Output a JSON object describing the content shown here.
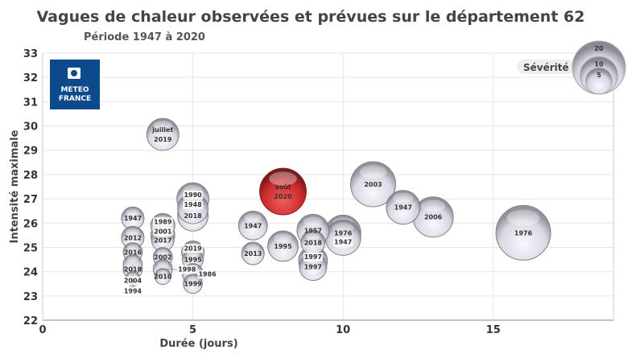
{
  "chart_data": {
    "type": "scatter",
    "title": "Vagues de chaleur observées et prévues sur le département 62",
    "subtitle": "Période 1947 à 2020",
    "xlabel": "Durée (jours)",
    "ylabel": "Intensité maximale",
    "xlim": [
      0,
      19
    ],
    "ylim": [
      22,
      33
    ],
    "xticks": [
      0,
      5,
      10,
      15
    ],
    "yticks": [
      22,
      23,
      24,
      25,
      26,
      27,
      28,
      29,
      30,
      31,
      32,
      33
    ],
    "grid": true,
    "legend": {
      "title": "Sévérité",
      "sizes": [
        20,
        10,
        5
      ],
      "placement": "top-right"
    },
    "logo": "METEO FRANCE",
    "colors": {
      "bubble": "#d8d8e4",
      "highlight": "#d42020",
      "logo": "#0c4a8c"
    },
    "points": [
      {
        "x": 3,
        "y": 26.2,
        "s": 3.6,
        "label": "1947"
      },
      {
        "x": 3,
        "y": 25.4,
        "s": 3.6,
        "label": "2012"
      },
      {
        "x": 3,
        "y": 24.8,
        "s": 2.6,
        "label": "2016"
      },
      {
        "x": 3,
        "y": 24.1,
        "s": 2.6,
        "label": "2018"
      },
      {
        "x": 3,
        "y": 24.3,
        "s": 2.6,
        "label": "2004"
      },
      {
        "x": 3,
        "y": 23.7,
        "s": 1.5,
        "label": "1994"
      },
      {
        "x": 4,
        "y": 29.65,
        "s": 7.3,
        "label": "2019",
        "label2": "juillet"
      },
      {
        "x": 4,
        "y": 25.3,
        "s": 3.6,
        "label": "2017"
      },
      {
        "x": 4,
        "y": 25.5,
        "s": 4.1,
        "label": "2001"
      },
      {
        "x": 4,
        "y": 25.9,
        "s": 4.1,
        "label": "1989"
      },
      {
        "x": 4,
        "y": 24.6,
        "s": 2.6,
        "label": "2002"
      },
      {
        "x": 4,
        "y": 23.8,
        "s": 1.8,
        "label": "2010"
      },
      {
        "x": 4,
        "y": 24.1,
        "s": 2.6,
        "label": "1998"
      },
      {
        "x": 5,
        "y": 26.3,
        "s": 6.6,
        "label": "2018"
      },
      {
        "x": 5,
        "y": 26.6,
        "s": 6.6,
        "label": "1948"
      },
      {
        "x": 5,
        "y": 27.0,
        "s": 7.3,
        "label": "1990"
      },
      {
        "x": 5,
        "y": 24.5,
        "s": 3.1,
        "label": "1995"
      },
      {
        "x": 5,
        "y": 24.8,
        "s": 3.6,
        "label": "2019"
      },
      {
        "x": 5,
        "y": 23.5,
        "s": 2.6,
        "label": "1999"
      },
      {
        "x": 5,
        "y": 23.9,
        "s": 3.1,
        "label": "1986"
      },
      {
        "x": 7,
        "y": 25.9,
        "s": 5.9,
        "label": "1947"
      },
      {
        "x": 7,
        "y": 24.75,
        "s": 3.6,
        "label": "2013"
      },
      {
        "x": 8,
        "y": 25.05,
        "s": 6.6,
        "label": "1995"
      },
      {
        "x": 9,
        "y": 25.2,
        "s": 4.1,
        "label": "2018"
      },
      {
        "x": 9,
        "y": 25.7,
        "s": 7.3,
        "label": "1957"
      },
      {
        "x": 9,
        "y": 24.2,
        "s": 5.3,
        "label": "1997"
      },
      {
        "x": 9,
        "y": 24.45,
        "s": 5.9,
        "label": "1997"
      },
      {
        "x": 10,
        "y": 25.6,
        "s": 8.9,
        "label": "1976"
      },
      {
        "x": 10,
        "y": 25.4,
        "s": 8.9,
        "label": "1947"
      },
      {
        "x": 11,
        "y": 27.6,
        "s": 14.4,
        "label": "2003"
      },
      {
        "x": 12,
        "y": 26.65,
        "s": 8.1,
        "label": "1947"
      },
      {
        "x": 13,
        "y": 26.25,
        "s": 11.5,
        "label": "2006"
      },
      {
        "x": 16,
        "y": 25.6,
        "s": 21.2,
        "label": "1976"
      },
      {
        "x": 8,
        "y": 27.3,
        "s": 15.4,
        "label": "2020",
        "label2": "août",
        "highlight": true
      }
    ]
  }
}
